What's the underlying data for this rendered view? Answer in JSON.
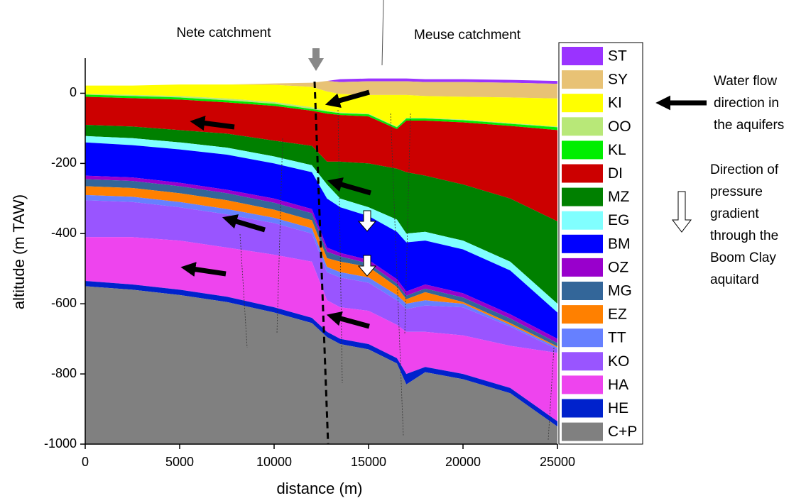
{
  "chart_data": {
    "type": "area",
    "xlabel": "distance (m)",
    "ylabel": "altitude (m TAW)",
    "annotations": [
      "Nete catchment",
      "Meuse catchment"
    ],
    "side_notes": [
      [
        "Water flow",
        "direction in",
        "the aquifers"
      ],
      [
        "Direction of",
        "pressure",
        "gradient",
        "through the",
        "Boom Clay",
        "aquitard"
      ]
    ],
    "xlim": [
      0,
      25000
    ],
    "xticks": [
      0,
      5000,
      10000,
      15000,
      20000,
      25000
    ],
    "ylim": [
      -1000,
      100
    ],
    "yticks": [
      -1000,
      -800,
      -600,
      -400,
      -200,
      0
    ],
    "x": [
      0,
      2500,
      5000,
      7500,
      10000,
      12000,
      12800,
      13500,
      15000,
      16500,
      17000,
      18000,
      20000,
      22500,
      25000
    ],
    "series": [
      {
        "name": "ST",
        "color": "#9a33ff",
        "values": [
          22,
          22,
          25,
          25,
          28,
          30,
          35,
          40,
          42,
          42,
          42,
          40,
          40,
          38,
          35
        ]
      },
      {
        "name": "SY",
        "color": "#e8c275",
        "values": [
          22,
          22,
          25,
          25,
          28,
          30,
          35,
          32,
          34,
          34,
          34,
          32,
          32,
          30,
          27
        ]
      },
      {
        "name": "KI",
        "color": "#ffff00",
        "values": [
          22,
          22,
          25,
          25,
          24,
          18,
          5,
          -2,
          -5,
          -5,
          -5,
          -8,
          -10,
          -12,
          -15
        ]
      },
      {
        "name": "OO",
        "color": "#b8e878",
        "values": [
          -2,
          -5,
          -8,
          -15,
          -25,
          -40,
          -50,
          -55,
          -58,
          -95,
          -70,
          -70,
          -75,
          -85,
          -95
        ]
      },
      {
        "name": "KL",
        "color": "#00ee00",
        "values": [
          -4,
          -8,
          -12,
          -20,
          -30,
          -45,
          -52,
          -57,
          -60,
          -97,
          -72,
          -72,
          -77,
          -87,
          -97
        ]
      },
      {
        "name": "DI",
        "color": "#cc0000",
        "values": [
          -10,
          -14,
          -18,
          -26,
          -36,
          -50,
          -58,
          -62,
          -66,
          -102,
          -78,
          -78,
          -83,
          -93,
          -105
        ]
      },
      {
        "name": "MZ",
        "color": "#008000",
        "values": [
          -90,
          -95,
          -105,
          -115,
          -135,
          -150,
          -195,
          -195,
          -200,
          -215,
          -225,
          -235,
          -260,
          -300,
          -365
        ]
      },
      {
        "name": "EG",
        "color": "#80ffff",
        "values": [
          -122,
          -128,
          -140,
          -155,
          -180,
          -205,
          -260,
          -300,
          -325,
          -360,
          -400,
          -395,
          -420,
          -480,
          -600
        ]
      },
      {
        "name": "BM",
        "color": "#0000ff",
        "values": [
          -140,
          -148,
          -160,
          -175,
          -200,
          -225,
          -300,
          -325,
          -350,
          -395,
          -425,
          -420,
          -445,
          -505,
          -625
        ]
      },
      {
        "name": "OZ",
        "color": "#9900cc",
        "values": [
          -235,
          -240,
          -255,
          -275,
          -300,
          -330,
          -440,
          -455,
          -475,
          -530,
          -565,
          -545,
          -570,
          -630,
          -700
        ]
      },
      {
        "name": "MG",
        "color": "#336699",
        "values": [
          -245,
          -250,
          -265,
          -285,
          -312,
          -342,
          -452,
          -465,
          -485,
          -542,
          -577,
          -557,
          -582,
          -642,
          -712
        ]
      },
      {
        "name": "EZ",
        "color": "#ff8000",
        "values": [
          -265,
          -270,
          -285,
          -305,
          -332,
          -362,
          -470,
          -480,
          -495,
          -552,
          -587,
          -567,
          -595,
          -655,
          -722
        ]
      },
      {
        "name": "TT",
        "color": "#6680ff",
        "values": [
          -290,
          -295,
          -310,
          -330,
          -355,
          -385,
          -495,
          -510,
          -525,
          -575,
          -600,
          -590,
          -600,
          -660,
          -725
        ]
      },
      {
        "name": "KO",
        "color": "#9955ff",
        "values": [
          -305,
          -310,
          -325,
          -345,
          -370,
          -400,
          -510,
          -525,
          -540,
          -590,
          -615,
          -605,
          -610,
          -665,
          -730
        ]
      },
      {
        "name": "HA",
        "color": "#ee44ee",
        "values": [
          -410,
          -410,
          -420,
          -440,
          -460,
          -480,
          -590,
          -610,
          -620,
          -660,
          -680,
          -680,
          -690,
          -720,
          -740
        ]
      },
      {
        "name": "HE",
        "color": "#0022cc",
        "values": [
          -535,
          -545,
          -560,
          -580,
          -610,
          -640,
          -680,
          -700,
          -715,
          -755,
          -800,
          -780,
          -800,
          -840,
          -935
        ]
      },
      {
        "name": "C+P",
        "color": "#808080",
        "values": [
          -550,
          -560,
          -575,
          -595,
          -625,
          -655,
          -695,
          -715,
          -730,
          -770,
          -830,
          -795,
          -815,
          -855,
          -950
        ]
      }
    ]
  }
}
